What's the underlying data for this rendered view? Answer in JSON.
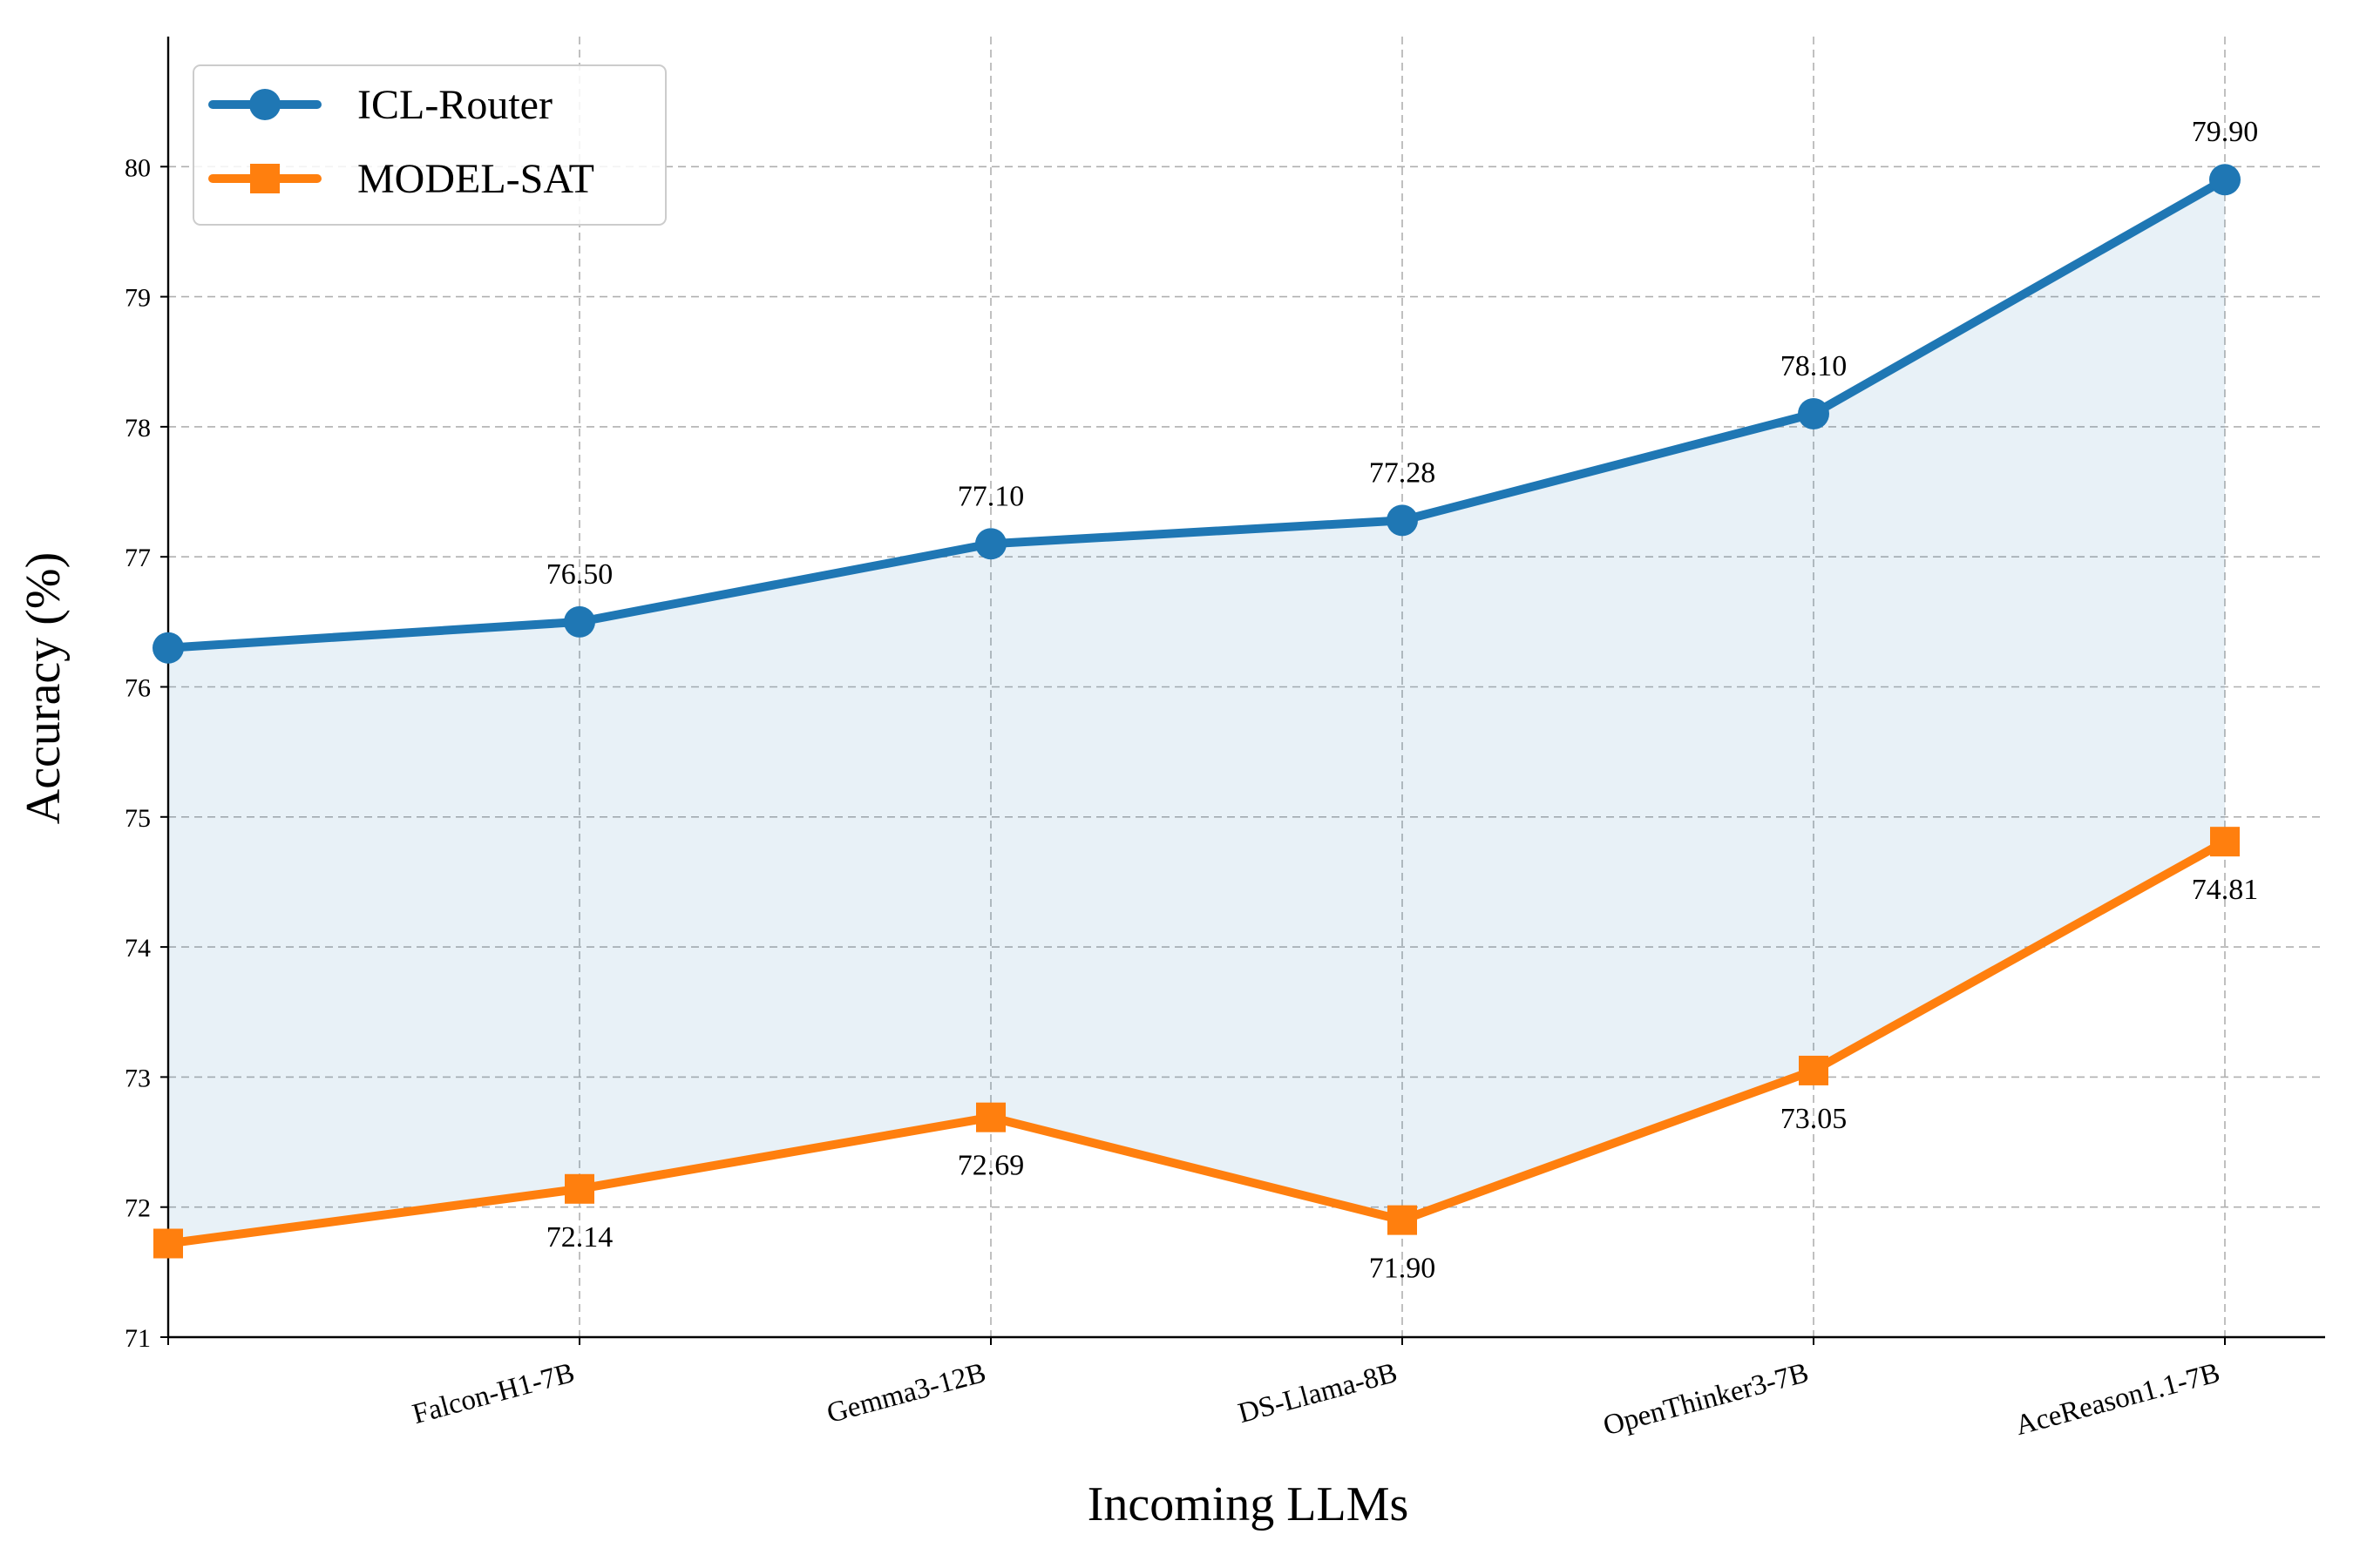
{
  "chart_data": {
    "type": "line",
    "title": "",
    "xlabel": "Incoming LLMs",
    "ylabel": "Accuracy (%)",
    "ylim": [
      71,
      81
    ],
    "yticks": [
      71,
      72,
      73,
      74,
      75,
      76,
      77,
      78,
      79,
      80
    ],
    "grid": true,
    "legend_position": "upper-left",
    "categories": [
      "",
      "Falcon-H1-7B",
      "Gemma3-12B",
      "DS-Llama-8B",
      "OpenThinker3-7B",
      "AceReason1.1-7B"
    ],
    "series": [
      {
        "name": "ICL-Router",
        "color": "#1f77b4",
        "marker": "circle",
        "values": [
          76.3,
          76.5,
          77.1,
          77.28,
          78.1,
          79.9
        ],
        "labels": [
          "",
          "76.50",
          "77.10",
          "77.28",
          "78.10",
          "79.90"
        ]
      },
      {
        "name": "MODEL-SAT",
        "color": "#ff7f0e",
        "marker": "square",
        "values": [
          71.72,
          72.14,
          72.69,
          71.9,
          73.05,
          74.81
        ],
        "labels": [
          "",
          "72.14",
          "72.69",
          "71.90",
          "73.05",
          "74.81"
        ]
      }
    ],
    "fill_between": {
      "color": "#1f77b4",
      "opacity": 0.1
    }
  }
}
